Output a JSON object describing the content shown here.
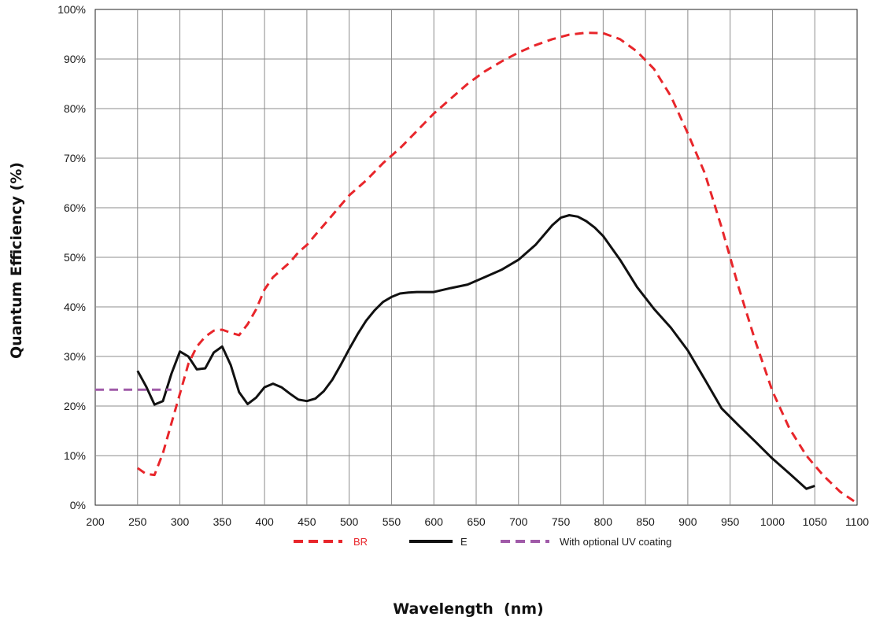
{
  "chart_data": {
    "type": "line",
    "title": "",
    "xlabel": "Wavelength  (nm)",
    "ylabel": "Quantum Efficiency (%)",
    "xlim": [
      200,
      1100
    ],
    "ylim": [
      0,
      100
    ],
    "x_ticks": [
      200,
      250,
      300,
      350,
      400,
      450,
      500,
      550,
      600,
      650,
      700,
      750,
      800,
      850,
      900,
      950,
      1000,
      1050,
      1100
    ],
    "y_ticks": [
      0,
      10,
      20,
      30,
      40,
      50,
      60,
      70,
      80,
      90,
      100
    ],
    "y_tick_suffix": "%",
    "grid": true,
    "legend_position": "bottom",
    "series": [
      {
        "name": "BR",
        "color": "#e8262b",
        "style": "dashed",
        "legend_text_color": "#e8262b",
        "x": [
          250,
          260,
          270,
          280,
          290,
          300,
          310,
          320,
          330,
          340,
          350,
          360,
          370,
          380,
          390,
          400,
          410,
          420,
          430,
          440,
          450,
          460,
          470,
          480,
          490,
          500,
          520,
          540,
          560,
          580,
          600,
          620,
          640,
          660,
          680,
          700,
          720,
          740,
          760,
          780,
          800,
          820,
          840,
          860,
          880,
          900,
          920,
          940,
          960,
          980,
          1000,
          1020,
          1040,
          1060,
          1080,
          1100
        ],
        "y": [
          7.5,
          6.3,
          6.1,
          10.5,
          16.5,
          22.5,
          28.5,
          32,
          34,
          35.2,
          35.4,
          34.8,
          34.3,
          36.5,
          39.5,
          43.5,
          46,
          47.5,
          49,
          51,
          52.5,
          54.5,
          56.5,
          58.5,
          60.5,
          62.5,
          65.5,
          69,
          72,
          75.5,
          79,
          82,
          85,
          87.5,
          89.5,
          91.3,
          92.8,
          94,
          94.9,
          95.3,
          95.2,
          94,
          91.5,
          88,
          82.5,
          75,
          67,
          56,
          44,
          33,
          23,
          15.5,
          10,
          6,
          2.7,
          0.4
        ]
      },
      {
        "name": "E",
        "color": "#111111",
        "style": "solid",
        "legend_text_color": "#1a1a1a",
        "x": [
          250,
          260,
          270,
          280,
          290,
          300,
          310,
          320,
          330,
          340,
          350,
          360,
          370,
          380,
          390,
          400,
          410,
          420,
          430,
          440,
          450,
          460,
          470,
          480,
          490,
          500,
          510,
          520,
          530,
          540,
          550,
          560,
          570,
          580,
          590,
          600,
          620,
          640,
          660,
          680,
          700,
          720,
          740,
          750,
          760,
          770,
          780,
          790,
          800,
          820,
          840,
          860,
          880,
          900,
          920,
          940,
          960,
          980,
          1000,
          1020,
          1040,
          1050
        ],
        "y": [
          27.1,
          24,
          20.3,
          21,
          26.5,
          31,
          30,
          27.4,
          27.6,
          30.8,
          32,
          28.3,
          22.8,
          20.4,
          21.7,
          23.8,
          24.5,
          23.8,
          22.5,
          21.3,
          21,
          21.5,
          23,
          25.3,
          28.3,
          31.5,
          34.5,
          37.2,
          39.3,
          41,
          42,
          42.7,
          42.9,
          43,
          43,
          43,
          43.8,
          44.5,
          46,
          47.5,
          49.5,
          52.5,
          56.5,
          58,
          58.5,
          58.2,
          57.3,
          56,
          54.3,
          49.5,
          44,
          39.6,
          35.8,
          31.2,
          25.4,
          19.5,
          16.1,
          12.8,
          9.4,
          6.4,
          3.3,
          3.9
        ]
      },
      {
        "name": "With optional UV coating",
        "color": "#a05aa8",
        "style": "dashed",
        "legend_text_color": "#1a1a1a",
        "x": [
          200,
          290
        ],
        "y": [
          23.3,
          23.3
        ]
      }
    ]
  }
}
